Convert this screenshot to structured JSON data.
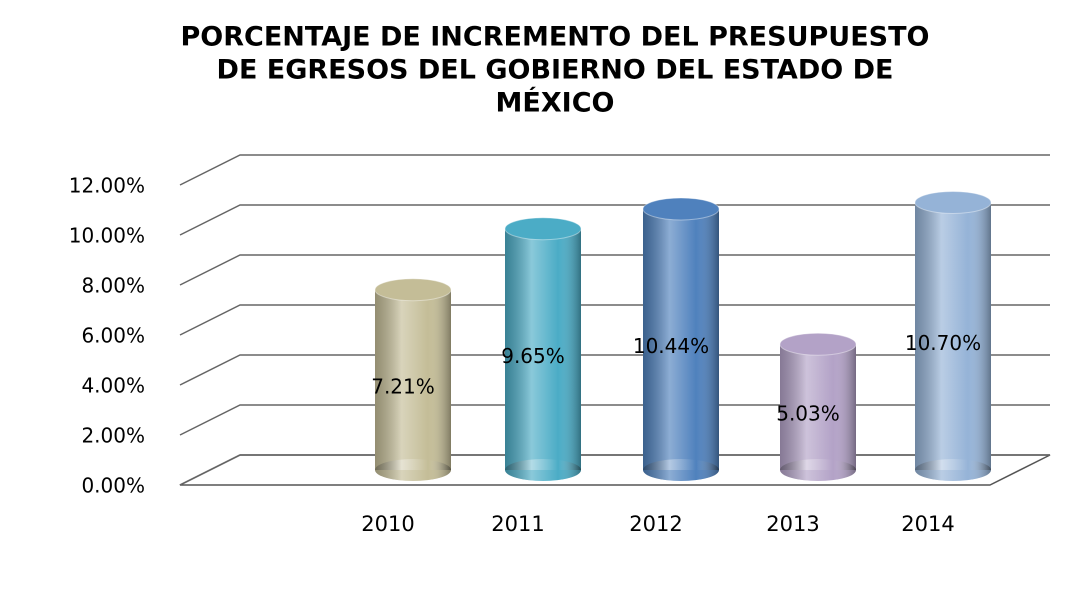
{
  "chart_data": {
    "type": "bar3d",
    "title": [
      "PORCENTAJE DE INCREMENTO DEL PRESUPUESTO",
      "DE EGRESOS DEL GOBIERNO DEL ESTADO DE",
      "MÉXICO"
    ],
    "categories": [
      "2010",
      "2011",
      "2012",
      "2013",
      "2014"
    ],
    "values": [
      7.21,
      9.65,
      10.44,
      5.03,
      10.7
    ],
    "value_labels": [
      "7.21%",
      "9.65%",
      "10.44%",
      "5.03%",
      "10.70%"
    ],
    "colors": [
      "#c4bd97",
      "#4bacc6",
      "#4f81bd",
      "#b3a2c7",
      "#95b3d7"
    ],
    "ylim": [
      0,
      12
    ],
    "yticks": [
      {
        "value": 0,
        "label": "0.00%"
      },
      {
        "value": 2,
        "label": "2.00%"
      },
      {
        "value": 4,
        "label": "4.00%"
      },
      {
        "value": 6,
        "label": "6.00%"
      },
      {
        "value": 8,
        "label": "8.00%"
      },
      {
        "value": 10,
        "label": "10.00%"
      },
      {
        "value": 12,
        "label": "12.00%"
      }
    ],
    "grid": true
  }
}
